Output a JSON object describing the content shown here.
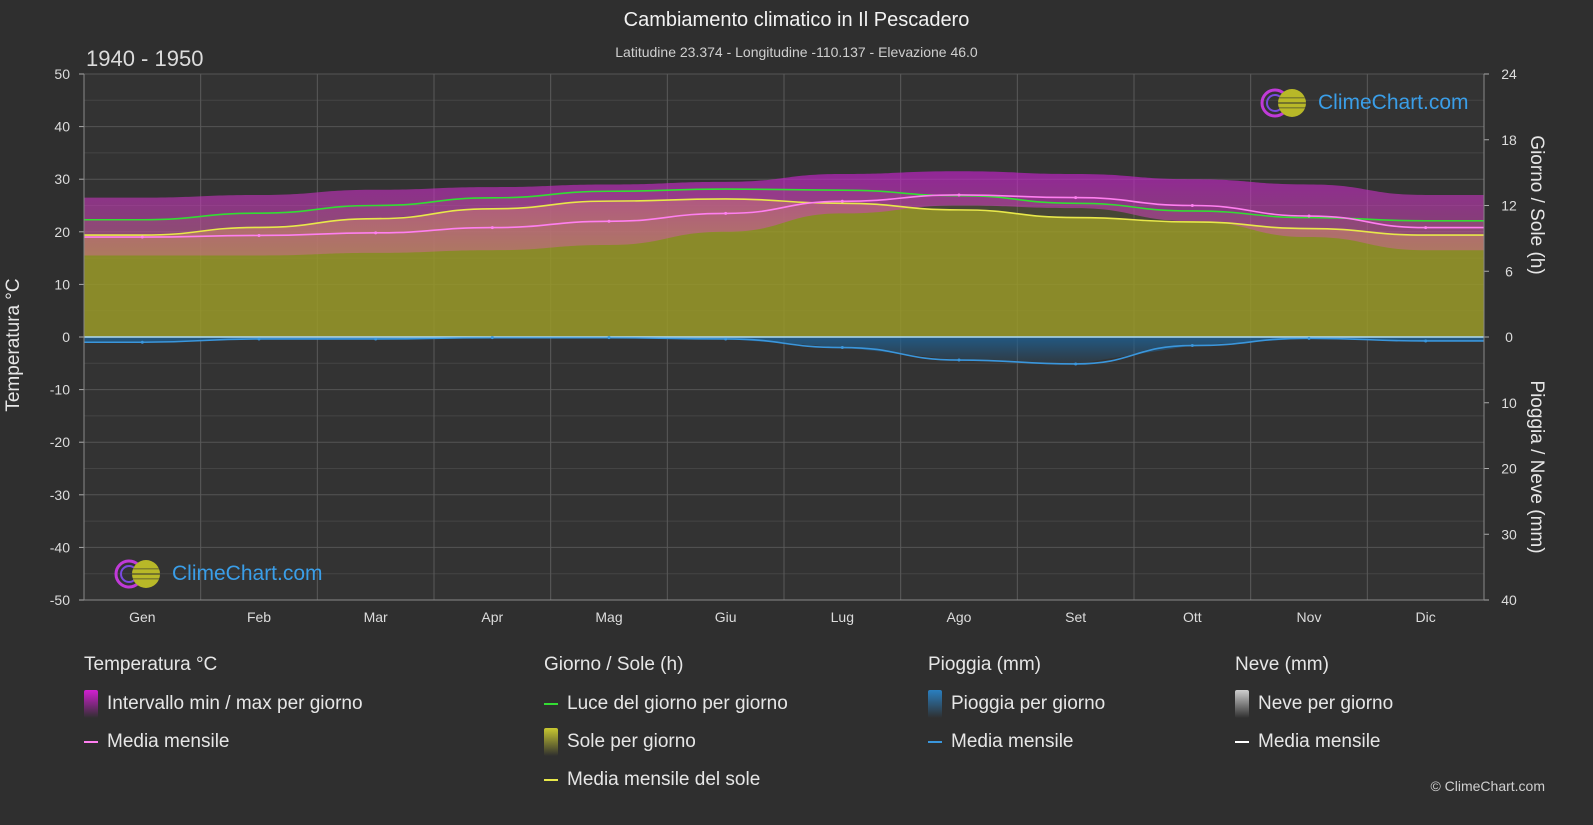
{
  "title": "Cambiamento climatico in Il Pescadero",
  "subtitle": "Latitudine 23.374 - Longitudine -110.137 - Elevazione 46.0",
  "period": "1940 - 1950",
  "brand": "ClimeChart.com",
  "copyright": "© ClimeChart.com",
  "colors": {
    "background": "#2f2f2f",
    "temp_range": "#d21fd2",
    "temp_mean": "#ff7ff0",
    "daylight": "#33dd33",
    "sunshine": "#b8b828",
    "sun_mean": "#e8e84a",
    "rain": "#2a7fc0",
    "rain_mean": "#3a96dc",
    "snow_mean": "#ffffff"
  },
  "chart_data": {
    "type": "area",
    "months": [
      "Gen",
      "Feb",
      "Mar",
      "Apr",
      "Mag",
      "Giu",
      "Lug",
      "Ago",
      "Set",
      "Ott",
      "Nov",
      "Dic"
    ],
    "axes": {
      "left": {
        "label": "Temperatura °C",
        "min": -50,
        "max": 50,
        "ticks": [
          "50",
          "40",
          "30",
          "20",
          "10",
          "0",
          "-10",
          "-20",
          "-30",
          "-40",
          "-50"
        ]
      },
      "right_top": {
        "label": "Giorno / Sole (h)",
        "min": 0,
        "max": 24,
        "ticks": [
          "24",
          "18",
          "12",
          "6",
          "0"
        ]
      },
      "right_bottom": {
        "label": "Pioggia / Neve (mm)",
        "min": 0,
        "max": 40,
        "ticks": [
          "0",
          "10",
          "20",
          "30",
          "40"
        ]
      }
    },
    "grid": true,
    "series": [
      {
        "name": "Intervallo min / max per giorno",
        "unit": "°C",
        "min": [
          15.5,
          15.5,
          16,
          16.5,
          17.5,
          20,
          23.5,
          25,
          24.5,
          22,
          19,
          16.5
        ],
        "max": [
          26.5,
          27,
          28,
          28.5,
          29,
          29.5,
          31,
          31.5,
          31,
          30,
          29,
          27
        ]
      },
      {
        "name": "Media mensile",
        "unit": "°C",
        "values": [
          19,
          19.3,
          19.8,
          20.8,
          22,
          23.5,
          25.8,
          27,
          26.5,
          25,
          23,
          20.8
        ]
      },
      {
        "name": "Luce del giorno per giorno",
        "unit": "h",
        "values": [
          10.7,
          11.3,
          12.0,
          12.7,
          13.3,
          13.5,
          13.4,
          12.9,
          12.2,
          11.5,
          10.9,
          10.6
        ]
      },
      {
        "name": "Sole per giorno",
        "unit": "h",
        "values": [
          9.3,
          10.0,
          10.8,
          11.7,
          12.4,
          12.6,
          12.2,
          11.6,
          10.9,
          10.5,
          9.9,
          9.3
        ]
      },
      {
        "name": "Media mensile del sole",
        "unit": "h",
        "values": [
          9.3,
          10.0,
          10.8,
          11.7,
          12.4,
          12.6,
          12.2,
          11.6,
          10.9,
          10.5,
          9.9,
          9.3
        ]
      },
      {
        "name": "Pioggia per giorno",
        "unit": "mm",
        "values": [
          0.8,
          0.3,
          0.3,
          0.1,
          0.1,
          0.3,
          1.6,
          3.5,
          4.1,
          1.3,
          0.2,
          0.6
        ]
      },
      {
        "name": "Media mensile",
        "unit": "mm",
        "values": [
          0.8,
          0.3,
          0.3,
          0.1,
          0.1,
          0.3,
          1.6,
          3.5,
          4.1,
          1.3,
          0.2,
          0.6
        ]
      },
      {
        "name": "Neve per giorno",
        "unit": "mm",
        "values": [
          0,
          0,
          0,
          0,
          0,
          0,
          0,
          0,
          0,
          0,
          0,
          0
        ]
      },
      {
        "name": "Media mensile",
        "unit": "mm",
        "values": [
          0,
          0,
          0,
          0,
          0,
          0,
          0,
          0,
          0,
          0,
          0,
          0
        ]
      }
    ]
  },
  "legend": {
    "groups": [
      {
        "title": "Temperatura °C",
        "items": [
          {
            "label": "Intervallo min / max per giorno",
            "kind": "box",
            "color": "#d21fd2"
          },
          {
            "label": "Media mensile",
            "kind": "line",
            "color": "#ff7ff0"
          }
        ]
      },
      {
        "title": "Giorno / Sole (h)",
        "items": [
          {
            "label": "Luce del giorno per giorno",
            "kind": "line",
            "color": "#33dd33"
          },
          {
            "label": "Sole per giorno",
            "kind": "box",
            "color": "#c8c830"
          },
          {
            "label": "Media mensile del sole",
            "kind": "line",
            "color": "#e8e84a"
          }
        ]
      },
      {
        "title": "Pioggia (mm)",
        "items": [
          {
            "label": "Pioggia per giorno",
            "kind": "box",
            "color": "#2a7fc0"
          },
          {
            "label": "Media mensile",
            "kind": "line",
            "color": "#3a96dc"
          }
        ]
      },
      {
        "title": "Neve (mm)",
        "items": [
          {
            "label": "Neve per giorno",
            "kind": "box",
            "color": "#cfcfcf"
          },
          {
            "label": "Media mensile",
            "kind": "line",
            "color": "#ffffff"
          }
        ]
      }
    ]
  }
}
